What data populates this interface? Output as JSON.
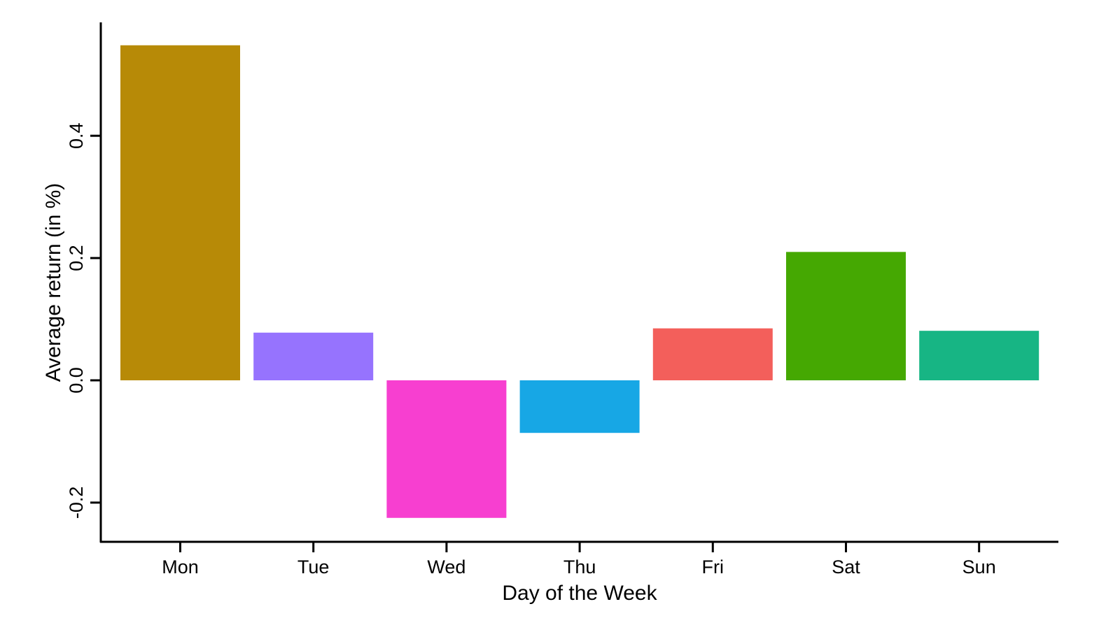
{
  "chart_data": {
    "type": "bar",
    "title": "",
    "xlabel": "Day of the Week",
    "ylabel": "Average return (in %)",
    "categories": [
      "Mon",
      "Tue",
      "Wed",
      "Thu",
      "Fri",
      "Sat",
      "Sun"
    ],
    "values": [
      0.548,
      0.078,
      -0.225,
      -0.086,
      0.085,
      0.21,
      0.081
    ],
    "colors": [
      "#b78a07",
      "#9673fe",
      "#f73fd0",
      "#17a7e5",
      "#f35f5b",
      "#45a802",
      "#17b584"
    ],
    "ylim": [
      -0.265,
      0.585
    ],
    "yticks": [
      -0.2,
      0.0,
      0.2,
      0.4
    ],
    "ytick_labels": [
      "-0.2",
      "0.0",
      "0.2",
      "0.4"
    ],
    "grid": false,
    "legend": null
  }
}
